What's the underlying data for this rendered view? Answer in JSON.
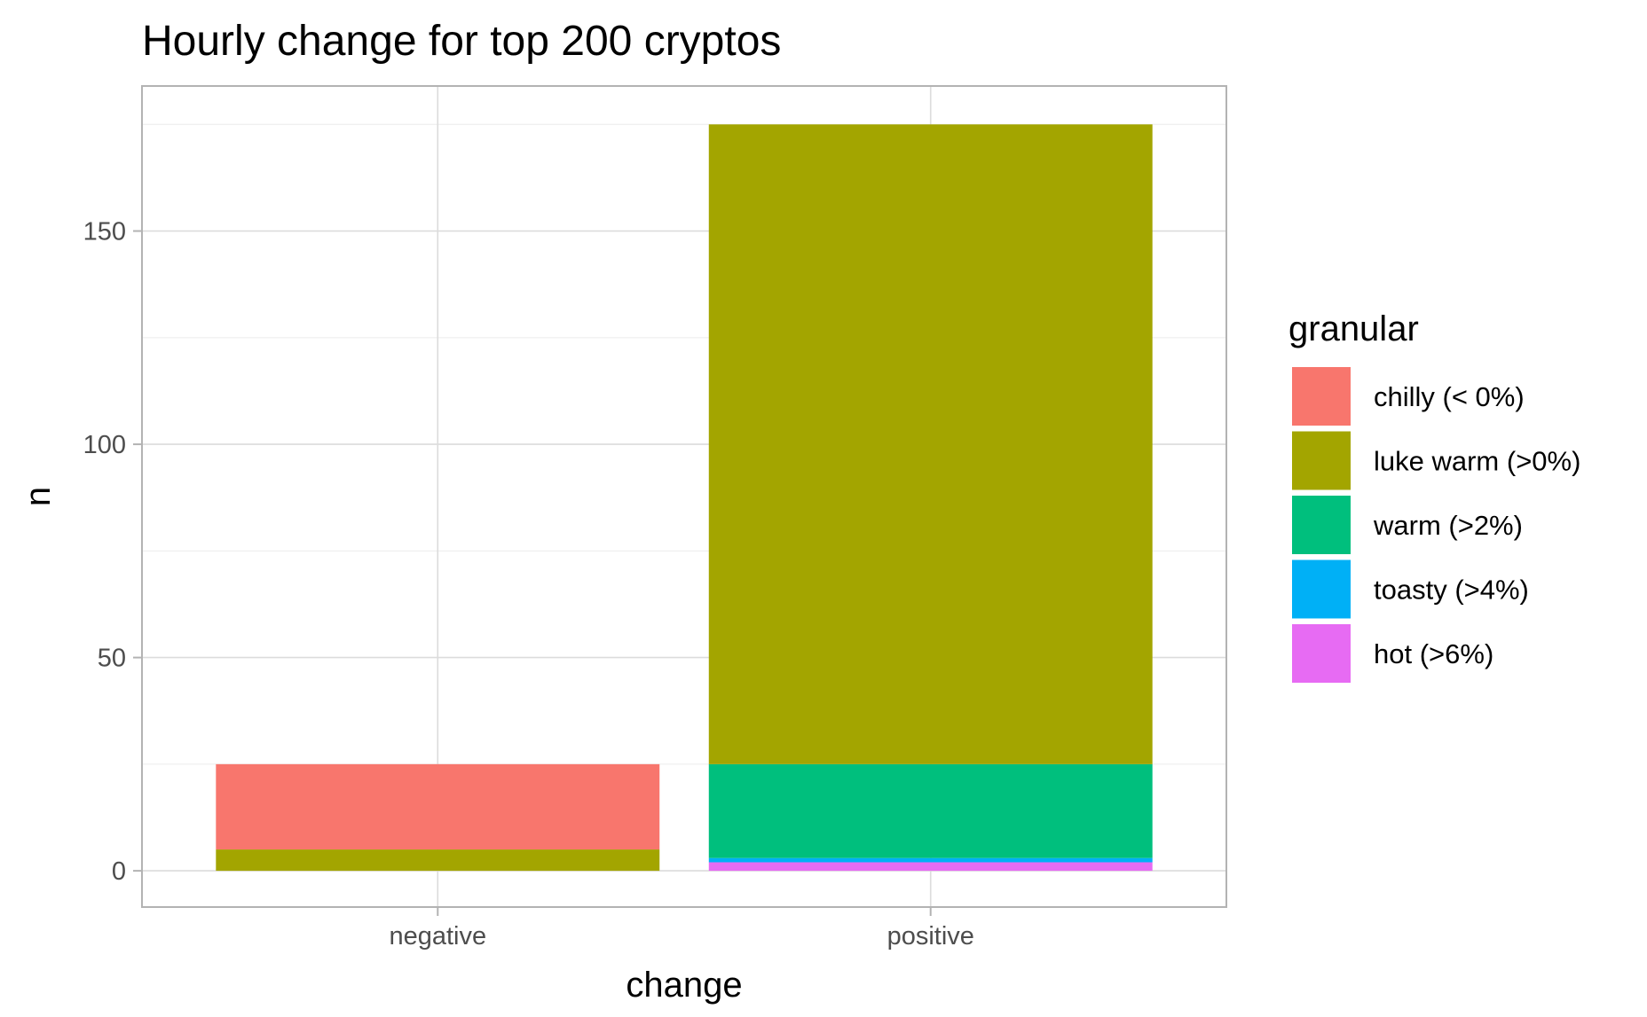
{
  "chart_data": {
    "type": "bar",
    "stacked": true,
    "title": "Hourly change for top 200 cryptos",
    "xlabel": "change",
    "ylabel": "n",
    "categories": [
      "negative",
      "positive"
    ],
    "ylim": [
      -8.5,
      184
    ],
    "yticks": [
      0,
      50,
      100,
      150
    ],
    "grid": true,
    "legend": {
      "title": "granular",
      "position": "right",
      "entries": [
        {
          "label": "chilly (< 0%)",
          "color": "#F8766D"
        },
        {
          "label": "luke warm (>0%)",
          "color": "#A3A500"
        },
        {
          "label": "warm (>2%)",
          "color": "#00BF7D"
        },
        {
          "label": "toasty (>4%)",
          "color": "#00B0F6"
        },
        {
          "label": "hot (>6%)",
          "color": "#E76BF3"
        }
      ]
    },
    "series": [
      {
        "name": "hot (>6%)",
        "color": "#E76BF3",
        "values": [
          0,
          2
        ]
      },
      {
        "name": "toasty (>4%)",
        "color": "#00B0F6",
        "values": [
          0,
          1
        ]
      },
      {
        "name": "warm (>2%)",
        "color": "#00BF7D",
        "values": [
          0,
          22
        ]
      },
      {
        "name": "luke warm (>0%)",
        "color": "#A3A500",
        "values": [
          5,
          150
        ]
      },
      {
        "name": "chilly (< 0%)",
        "color": "#F8766D",
        "values": [
          20,
          0
        ]
      }
    ]
  }
}
